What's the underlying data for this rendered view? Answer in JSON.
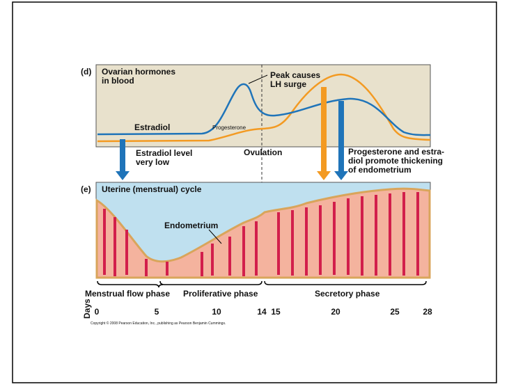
{
  "panel_d": {
    "letter": "(d)",
    "title_lines": [
      "Ovarian hormones",
      "in blood"
    ],
    "peak_note_lines": [
      "Peak causes",
      "LH surge"
    ],
    "estradiol_label": "Estradiol",
    "progesterone_label": "Progesterone",
    "low_note_lines": [
      "Estradiol level",
      "very low"
    ],
    "ovulation_label": "Ovulation",
    "thickening_note_lines": [
      "Progesterone and estra-",
      "diol promote thickening",
      "of endometrium"
    ]
  },
  "panel_e": {
    "letter": "(e)",
    "title": "Uterine (menstrual) cycle",
    "endometrium_label": "Endometrium"
  },
  "phases": [
    "Menstrual flow phase",
    "Proliferative phase",
    "Secretory phase"
  ],
  "days_label": "Days",
  "days": [
    "0",
    "5",
    "10",
    "14",
    "15",
    "20",
    "25",
    "28"
  ],
  "copyright": "Copyright © 2008 Pearson Education, Inc., publishing as Pearson Benjamin Cummings."
}
